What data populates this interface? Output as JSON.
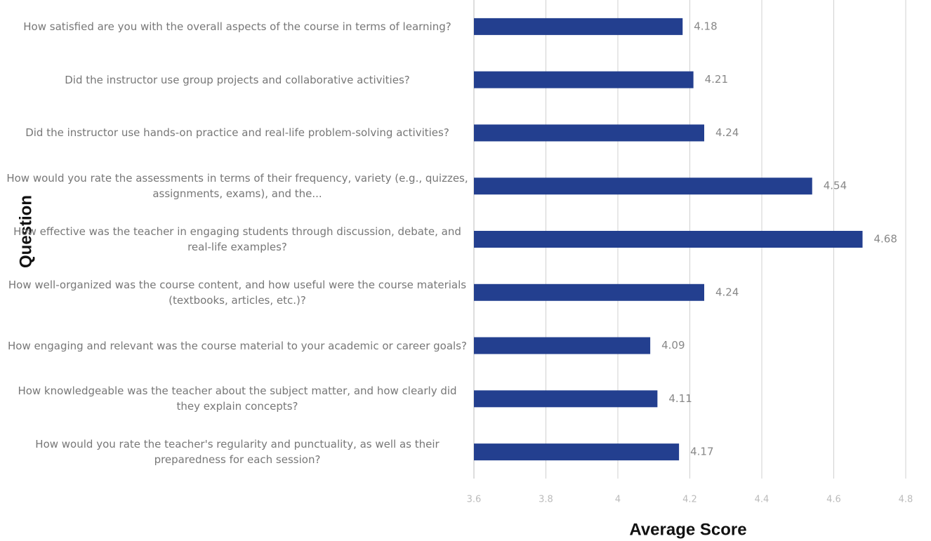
{
  "chart_data": {
    "type": "barh",
    "x_label": "Average Score",
    "y_label": "Question",
    "categories": [
      "How satisfied are you with the overall aspects of the course in terms of learning?",
      "Did the instructor use group projects and collaborative activities?",
      "Did the instructor use hands-on practice and real-life problem-solving activities?",
      "How would you rate the assessments in terms of their frequency, variety (e.g., quizzes, assignments, exams), and the...",
      "How effective was the teacher in engaging students through discussion, debate, and real-life examples?",
      "How well-organized was the course content, and how useful were the course materials (textbooks, articles, etc.)?",
      "How engaging and relevant was the course material to your academic or career goals?",
      "How knowledgeable was the teacher about the subject matter, and how clearly did they explain concepts?",
      "How would you rate the teacher's regularity and punctuality, as well as their preparedness for each session?"
    ],
    "values": [
      4.18,
      4.21,
      4.24,
      4.54,
      4.68,
      4.24,
      4.09,
      4.11,
      4.17
    ],
    "color": "#233f8f",
    "xlim": [
      3.6,
      4.8
    ],
    "xticks": [
      3.6,
      3.8,
      4,
      4.2,
      4.4,
      4.6,
      4.8
    ],
    "grid": true
  }
}
